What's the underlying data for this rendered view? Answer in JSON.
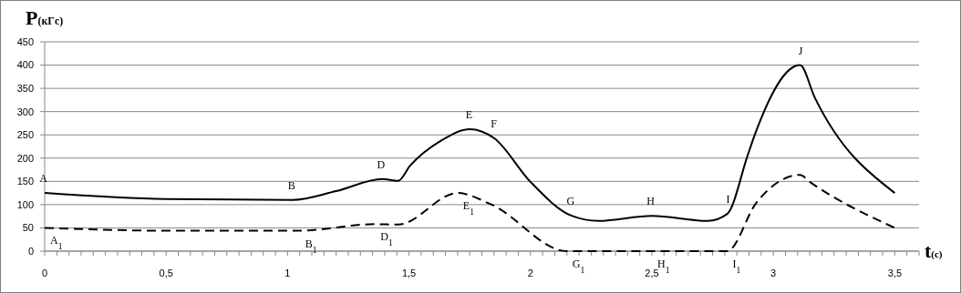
{
  "chart_data": {
    "type": "line",
    "xlabel": "t(c)",
    "ylabel": "P(кГс)",
    "xlim": [
      0,
      3.6
    ],
    "ylim": [
      0,
      450
    ],
    "xticks": [
      0,
      {
        "value": 0.05,
        "label": null
      },
      {
        "value": 0.1,
        "label": null
      },
      {
        "value": 0.15,
        "label": null
      },
      {
        "value": 0.2,
        "label": null
      },
      {
        "value": 0.25,
        "label": null
      },
      {
        "value": 0.3,
        "label": null
      },
      {
        "value": 0.35,
        "label": null
      },
      {
        "value": 0.4,
        "label": null
      },
      {
        "value": 0.45,
        "label": null
      },
      {
        "value": 0.5,
        "label": "0,5"
      },
      {
        "value": 0.55,
        "label": null
      },
      {
        "value": 0.6,
        "label": null
      },
      {
        "value": 0.65,
        "label": null
      },
      {
        "value": 0.7,
        "label": null
      },
      {
        "value": 0.75,
        "label": null
      },
      {
        "value": 0.8,
        "label": null
      },
      {
        "value": 0.85,
        "label": null
      },
      {
        "value": 0.9,
        "label": null
      },
      {
        "value": 0.95,
        "label": null
      },
      1,
      {
        "value": 1.05,
        "label": null
      },
      {
        "value": 1.1,
        "label": null
      },
      {
        "value": 1.15,
        "label": null
      },
      {
        "value": 1.2,
        "label": null
      },
      {
        "value": 1.25,
        "label": null
      },
      {
        "value": 1.3,
        "label": null
      },
      {
        "value": 1.35,
        "label": null
      },
      {
        "value": 1.4,
        "label": null
      },
      {
        "value": 1.45,
        "label": null
      },
      {
        "value": 1.5,
        "label": "1,5"
      },
      {
        "value": 1.55,
        "label": null
      },
      {
        "value": 1.6,
        "label": null
      },
      {
        "value": 1.65,
        "label": null
      },
      {
        "value": 1.7,
        "label": null
      },
      {
        "value": 1.75,
        "label": null
      },
      {
        "value": 1.8,
        "label": null
      },
      {
        "value": 1.85,
        "label": null
      },
      {
        "value": 1.9,
        "label": null
      },
      {
        "value": 1.95,
        "label": null
      },
      2,
      {
        "value": 2.05,
        "label": null
      },
      {
        "value": 2.1,
        "label": null
      },
      {
        "value": 2.15,
        "label": null
      },
      {
        "value": 2.2,
        "label": null
      },
      {
        "value": 2.25,
        "label": null
      },
      {
        "value": 2.3,
        "label": null
      },
      {
        "value": 2.35,
        "label": null
      },
      {
        "value": 2.4,
        "label": null
      },
      {
        "value": 2.45,
        "label": null
      },
      {
        "value": 2.5,
        "label": "2,5"
      },
      {
        "value": 2.55,
        "label": null
      },
      {
        "value": 2.6,
        "label": null
      },
      {
        "value": 2.65,
        "label": null
      },
      {
        "value": 2.7,
        "label": null
      },
      {
        "value": 2.75,
        "label": null
      },
      {
        "value": 2.8,
        "label": null
      },
      {
        "value": 2.85,
        "label": null
      },
      {
        "value": 2.9,
        "label": null
      },
      {
        "value": 2.95,
        "label": null
      },
      3,
      {
        "value": 3.05,
        "label": null
      },
      {
        "value": 3.1,
        "label": null
      },
      {
        "value": 3.15,
        "label": null
      },
      {
        "value": 3.2,
        "label": null
      },
      {
        "value": 3.25,
        "label": null
      },
      {
        "value": 3.3,
        "label": null
      },
      {
        "value": 3.35,
        "label": null
      },
      {
        "value": 3.4,
        "label": null
      },
      {
        "value": 3.45,
        "label": null
      },
      {
        "value": 3.5,
        "label": "3,5"
      },
      {
        "value": 3.55,
        "label": null
      },
      {
        "value": 3.6,
        "label": null
      }
    ],
    "yticks": [
      0,
      50,
      100,
      150,
      200,
      250,
      300,
      350,
      400,
      450
    ],
    "grid": "y",
    "marker": "none",
    "series": [
      {
        "color": "#000000",
        "line_style": "solid",
        "x": [
          0,
          0.5,
          1.02,
          1.2,
          1.39,
          1.455,
          1.505,
          1.63,
          1.75,
          1.85,
          2.0,
          2.17,
          2.28,
          2.5,
          2.73,
          2.81,
          2.895,
          2.925,
          3.11,
          3.17,
          3.5
        ],
        "values": [
          125,
          112,
          110,
          129,
          155,
          151,
          184,
          237,
          262,
          243,
          149,
          76,
          65,
          76,
          65,
          80,
          207,
          252,
          400,
          331,
          125
        ]
      },
      {
        "color": "#000000",
        "line_style": "dashed",
        "x": [
          0,
          0.5,
          1.05,
          1.36,
          1.455,
          1.7,
          1.84,
          2.15,
          2.5,
          2.81,
          2.93,
          3.11,
          3.15,
          3.5
        ],
        "values": [
          50,
          44,
          44,
          58,
          57,
          125,
          100,
          0,
          0,
          0,
          104,
          164,
          149,
          50
        ]
      }
    ],
    "annotations": [
      {
        "text": "A",
        "x": 0,
        "y": 125
      },
      {
        "text": "B",
        "x": 1.02,
        "y": 110
      },
      {
        "text": "D",
        "x": 1.39,
        "y": 155
      },
      {
        "text": "E",
        "x": 1.75,
        "y": 262
      },
      {
        "text": "F",
        "x": 1.85,
        "y": 243
      },
      {
        "text": "G",
        "x": 2.17,
        "y": 76
      },
      {
        "text": "H",
        "x": 2.5,
        "y": 76
      },
      {
        "text": "I",
        "x": 2.81,
        "y": 80
      },
      {
        "text": "J",
        "x": 3.11,
        "y": 400
      },
      {
        "text": "A$_{1}$",
        "x": 0,
        "y": 50
      },
      {
        "text": "B$_{1}$",
        "x": 1.05,
        "y": 44
      },
      {
        "text": "D$_{1}$",
        "x": 1.36,
        "y": 58
      },
      {
        "text": "E$_{1}$",
        "x": 1.7,
        "y": 125
      },
      {
        "text": "G$_{1}$",
        "x": 2.15,
        "y": 0
      },
      {
        "text": "H$_{1}$",
        "x": 2.5,
        "y": 0
      },
      {
        "text": "I$_{1}$",
        "x": 2.81,
        "y": 0
      }
    ]
  }
}
